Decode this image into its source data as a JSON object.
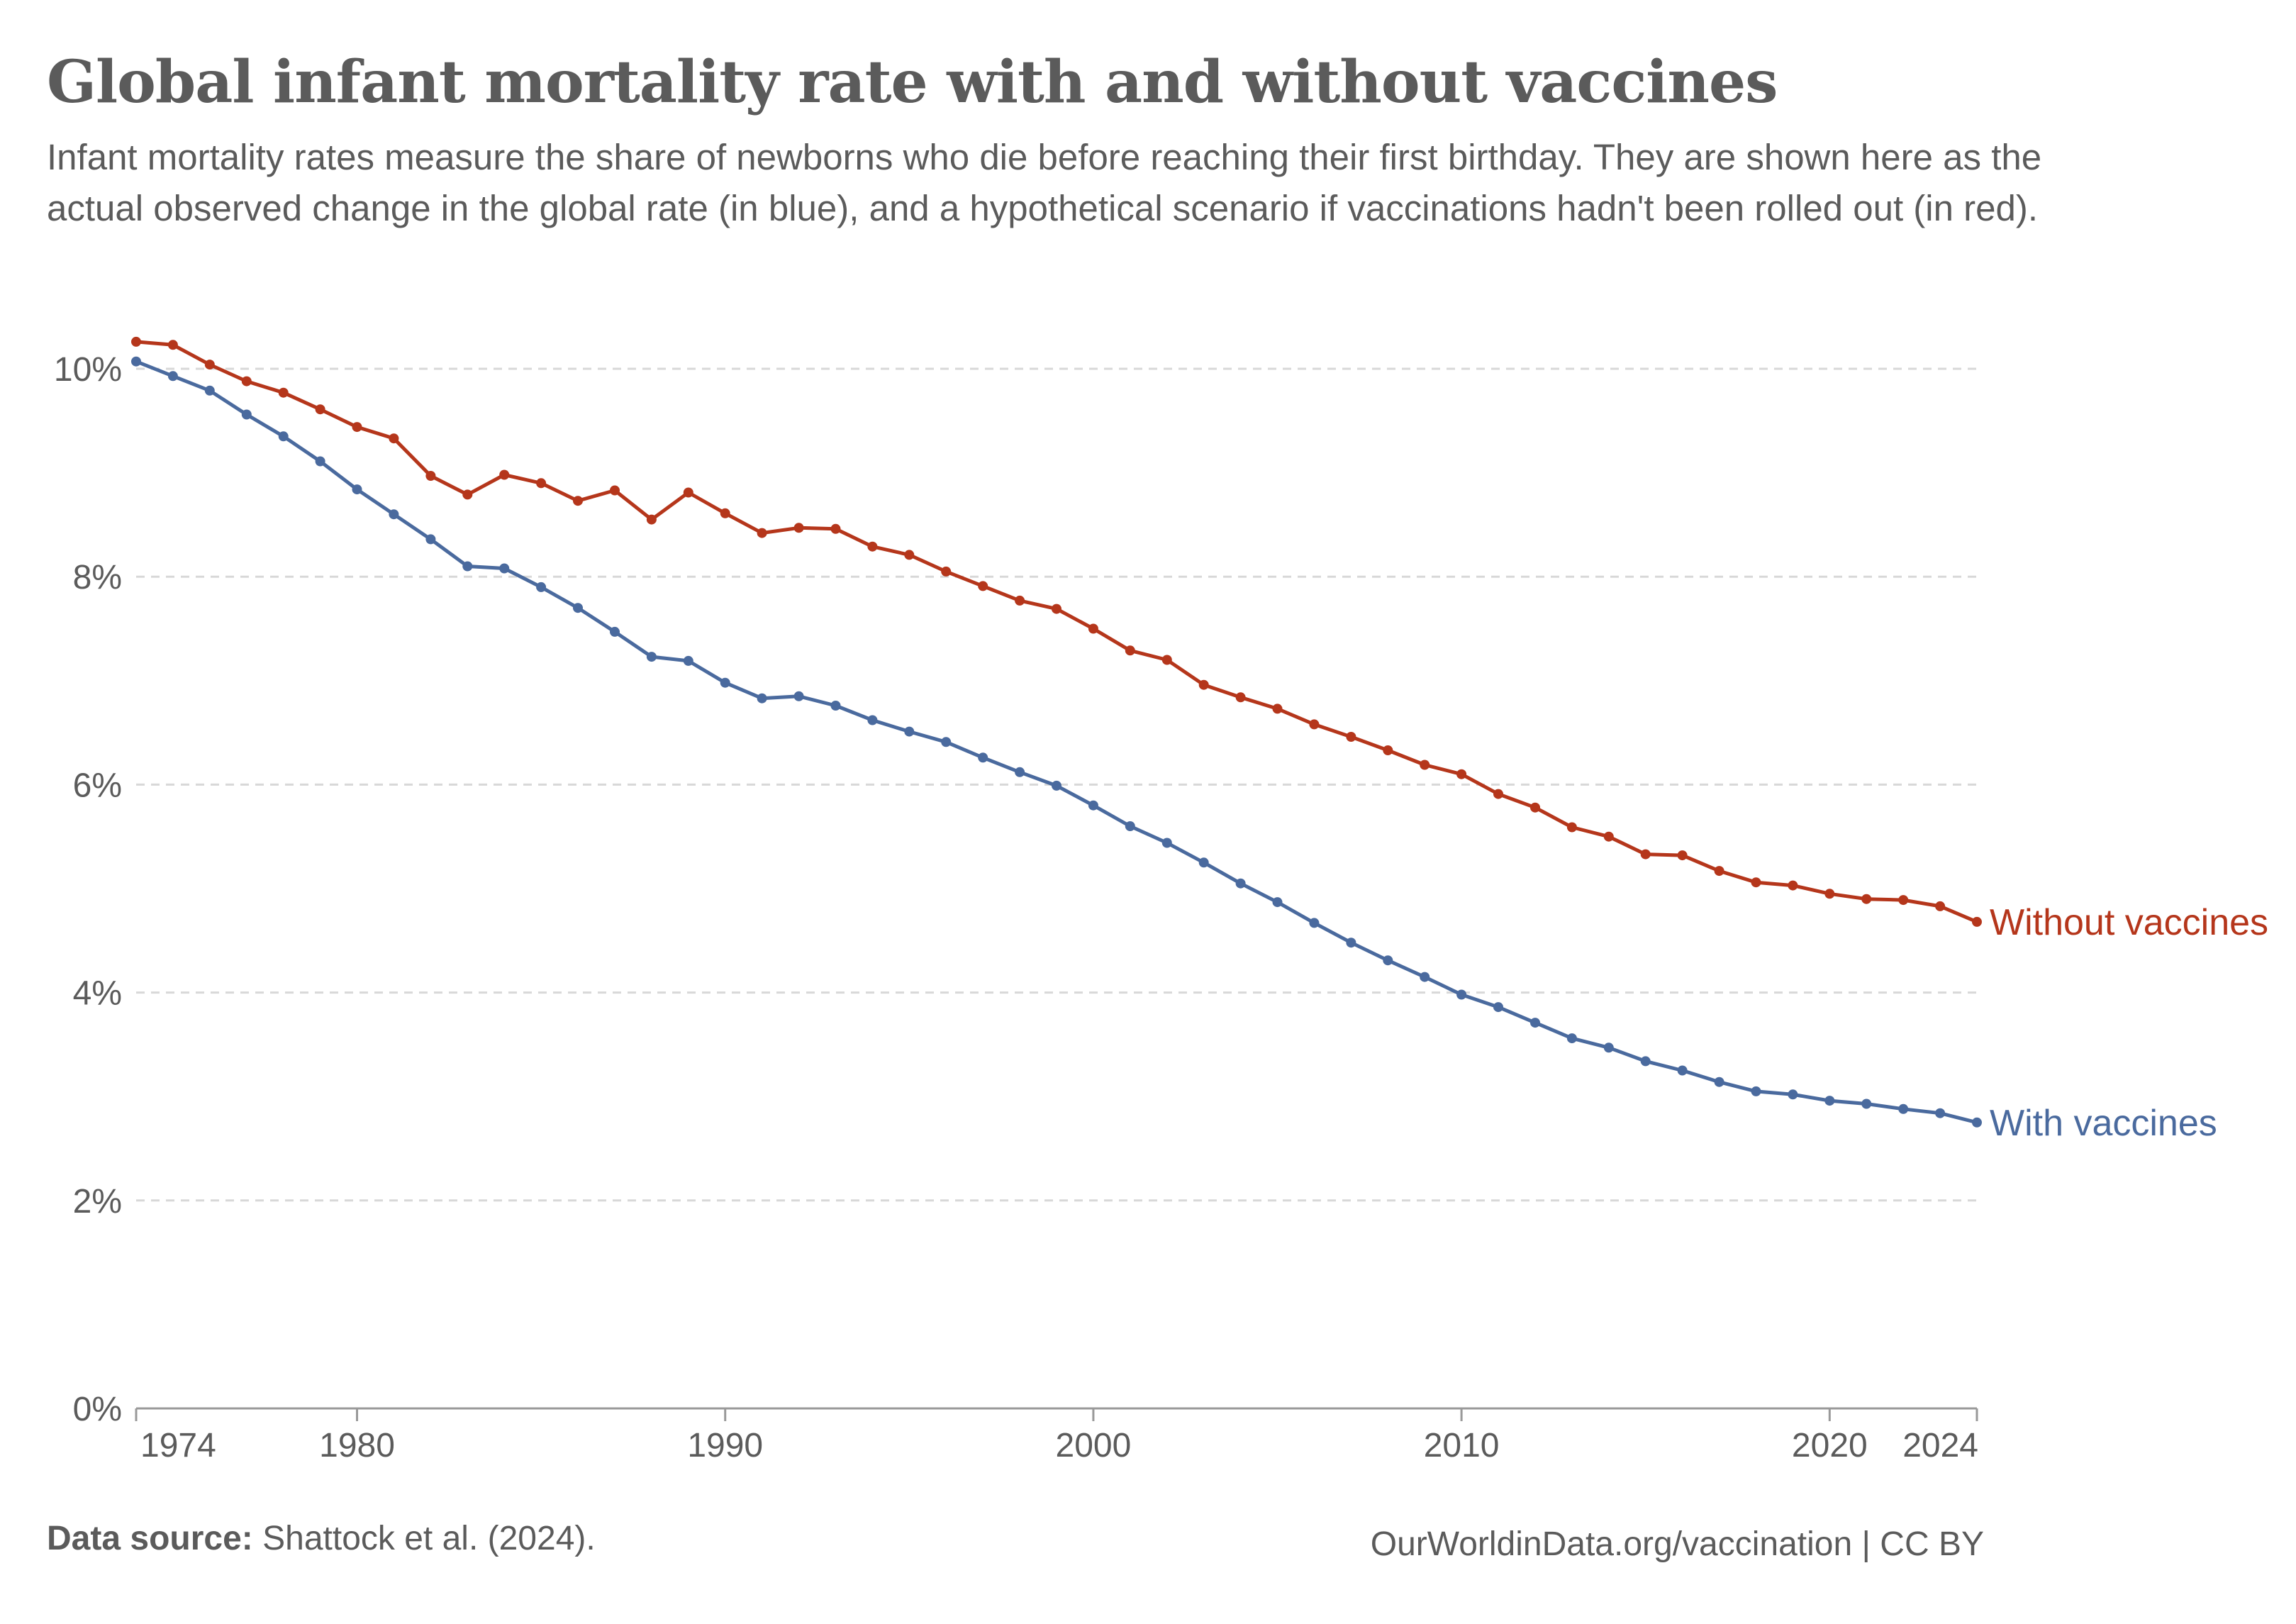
{
  "header": {
    "title": "Global infant mortality rate with and without vaccines",
    "subtitle": "Infant mortality rates measure the share of newborns who die before reaching their first birthday. They are shown here as the actual observed change in the global rate (in blue), and a hypothetical scenario if vaccinations hadn't been rolled out (in red)."
  },
  "footer": {
    "source_label": "Data source:",
    "source_text": "Shattock et al. (2024).",
    "credit": "OurWorldinData.org/vaccination | CC BY"
  },
  "colors": {
    "with_vaccines": "#4a6a9e",
    "without_vaccines": "#b5361b",
    "text": "#5b5b5b",
    "grid": "#d8d8d8"
  },
  "chart_data": {
    "type": "line",
    "title": "Global infant mortality rate with and without vaccines",
    "xlabel": "",
    "ylabel": "",
    "xlim": [
      1974,
      2024
    ],
    "ylim": [
      0,
      10
    ],
    "y_unit": "%",
    "grid": true,
    "x_ticks": [
      "1974",
      "1980",
      "1990",
      "2000",
      "2010",
      "2020",
      "2024"
    ],
    "y_ticks": [
      "0%",
      "2%",
      "4%",
      "6%",
      "8%",
      "10%"
    ],
    "legend": "inline-right",
    "x": [
      1974,
      1975,
      1976,
      1977,
      1978,
      1979,
      1980,
      1981,
      1982,
      1983,
      1984,
      1985,
      1986,
      1987,
      1988,
      1989,
      1990,
      1991,
      1992,
      1993,
      1994,
      1995,
      1996,
      1997,
      1998,
      1999,
      2000,
      2001,
      2002,
      2003,
      2004,
      2005,
      2006,
      2007,
      2008,
      2009,
      2010,
      2011,
      2012,
      2013,
      2014,
      2015,
      2016,
      2017,
      2018,
      2019,
      2020,
      2021,
      2022,
      2023,
      2024
    ],
    "series": [
      {
        "name": "Without vaccines",
        "color": "#b5361b",
        "values": [
          10.26,
          10.23,
          10.04,
          9.88,
          9.77,
          9.61,
          9.44,
          9.33,
          8.97,
          8.79,
          8.98,
          8.9,
          8.73,
          8.83,
          8.55,
          8.81,
          8.61,
          8.42,
          8.47,
          8.46,
          8.29,
          8.21,
          8.05,
          7.91,
          7.77,
          7.69,
          7.5,
          7.29,
          7.2,
          6.96,
          6.84,
          6.73,
          6.58,
          6.46,
          6.33,
          6.19,
          6.1,
          5.91,
          5.78,
          5.59,
          5.5,
          5.33,
          5.32,
          5.17,
          5.06,
          5.03,
          4.95,
          4.9,
          4.89,
          4.83,
          4.68
        ]
      },
      {
        "name": "With vaccines",
        "color": "#4a6a9e",
        "values": [
          10.07,
          9.93,
          9.79,
          9.56,
          9.35,
          9.11,
          8.84,
          8.6,
          8.36,
          8.1,
          8.08,
          7.9,
          7.7,
          7.47,
          7.23,
          7.19,
          6.98,
          6.83,
          6.85,
          6.76,
          6.62,
          6.51,
          6.41,
          6.26,
          6.12,
          5.99,
          5.8,
          5.6,
          5.44,
          5.25,
          5.05,
          4.87,
          4.67,
          4.48,
          4.31,
          4.15,
          3.98,
          3.86,
          3.71,
          3.56,
          3.47,
          3.34,
          3.25,
          3.14,
          3.05,
          3.02,
          2.96,
          2.93,
          2.88,
          2.84,
          2.75
        ]
      }
    ]
  }
}
